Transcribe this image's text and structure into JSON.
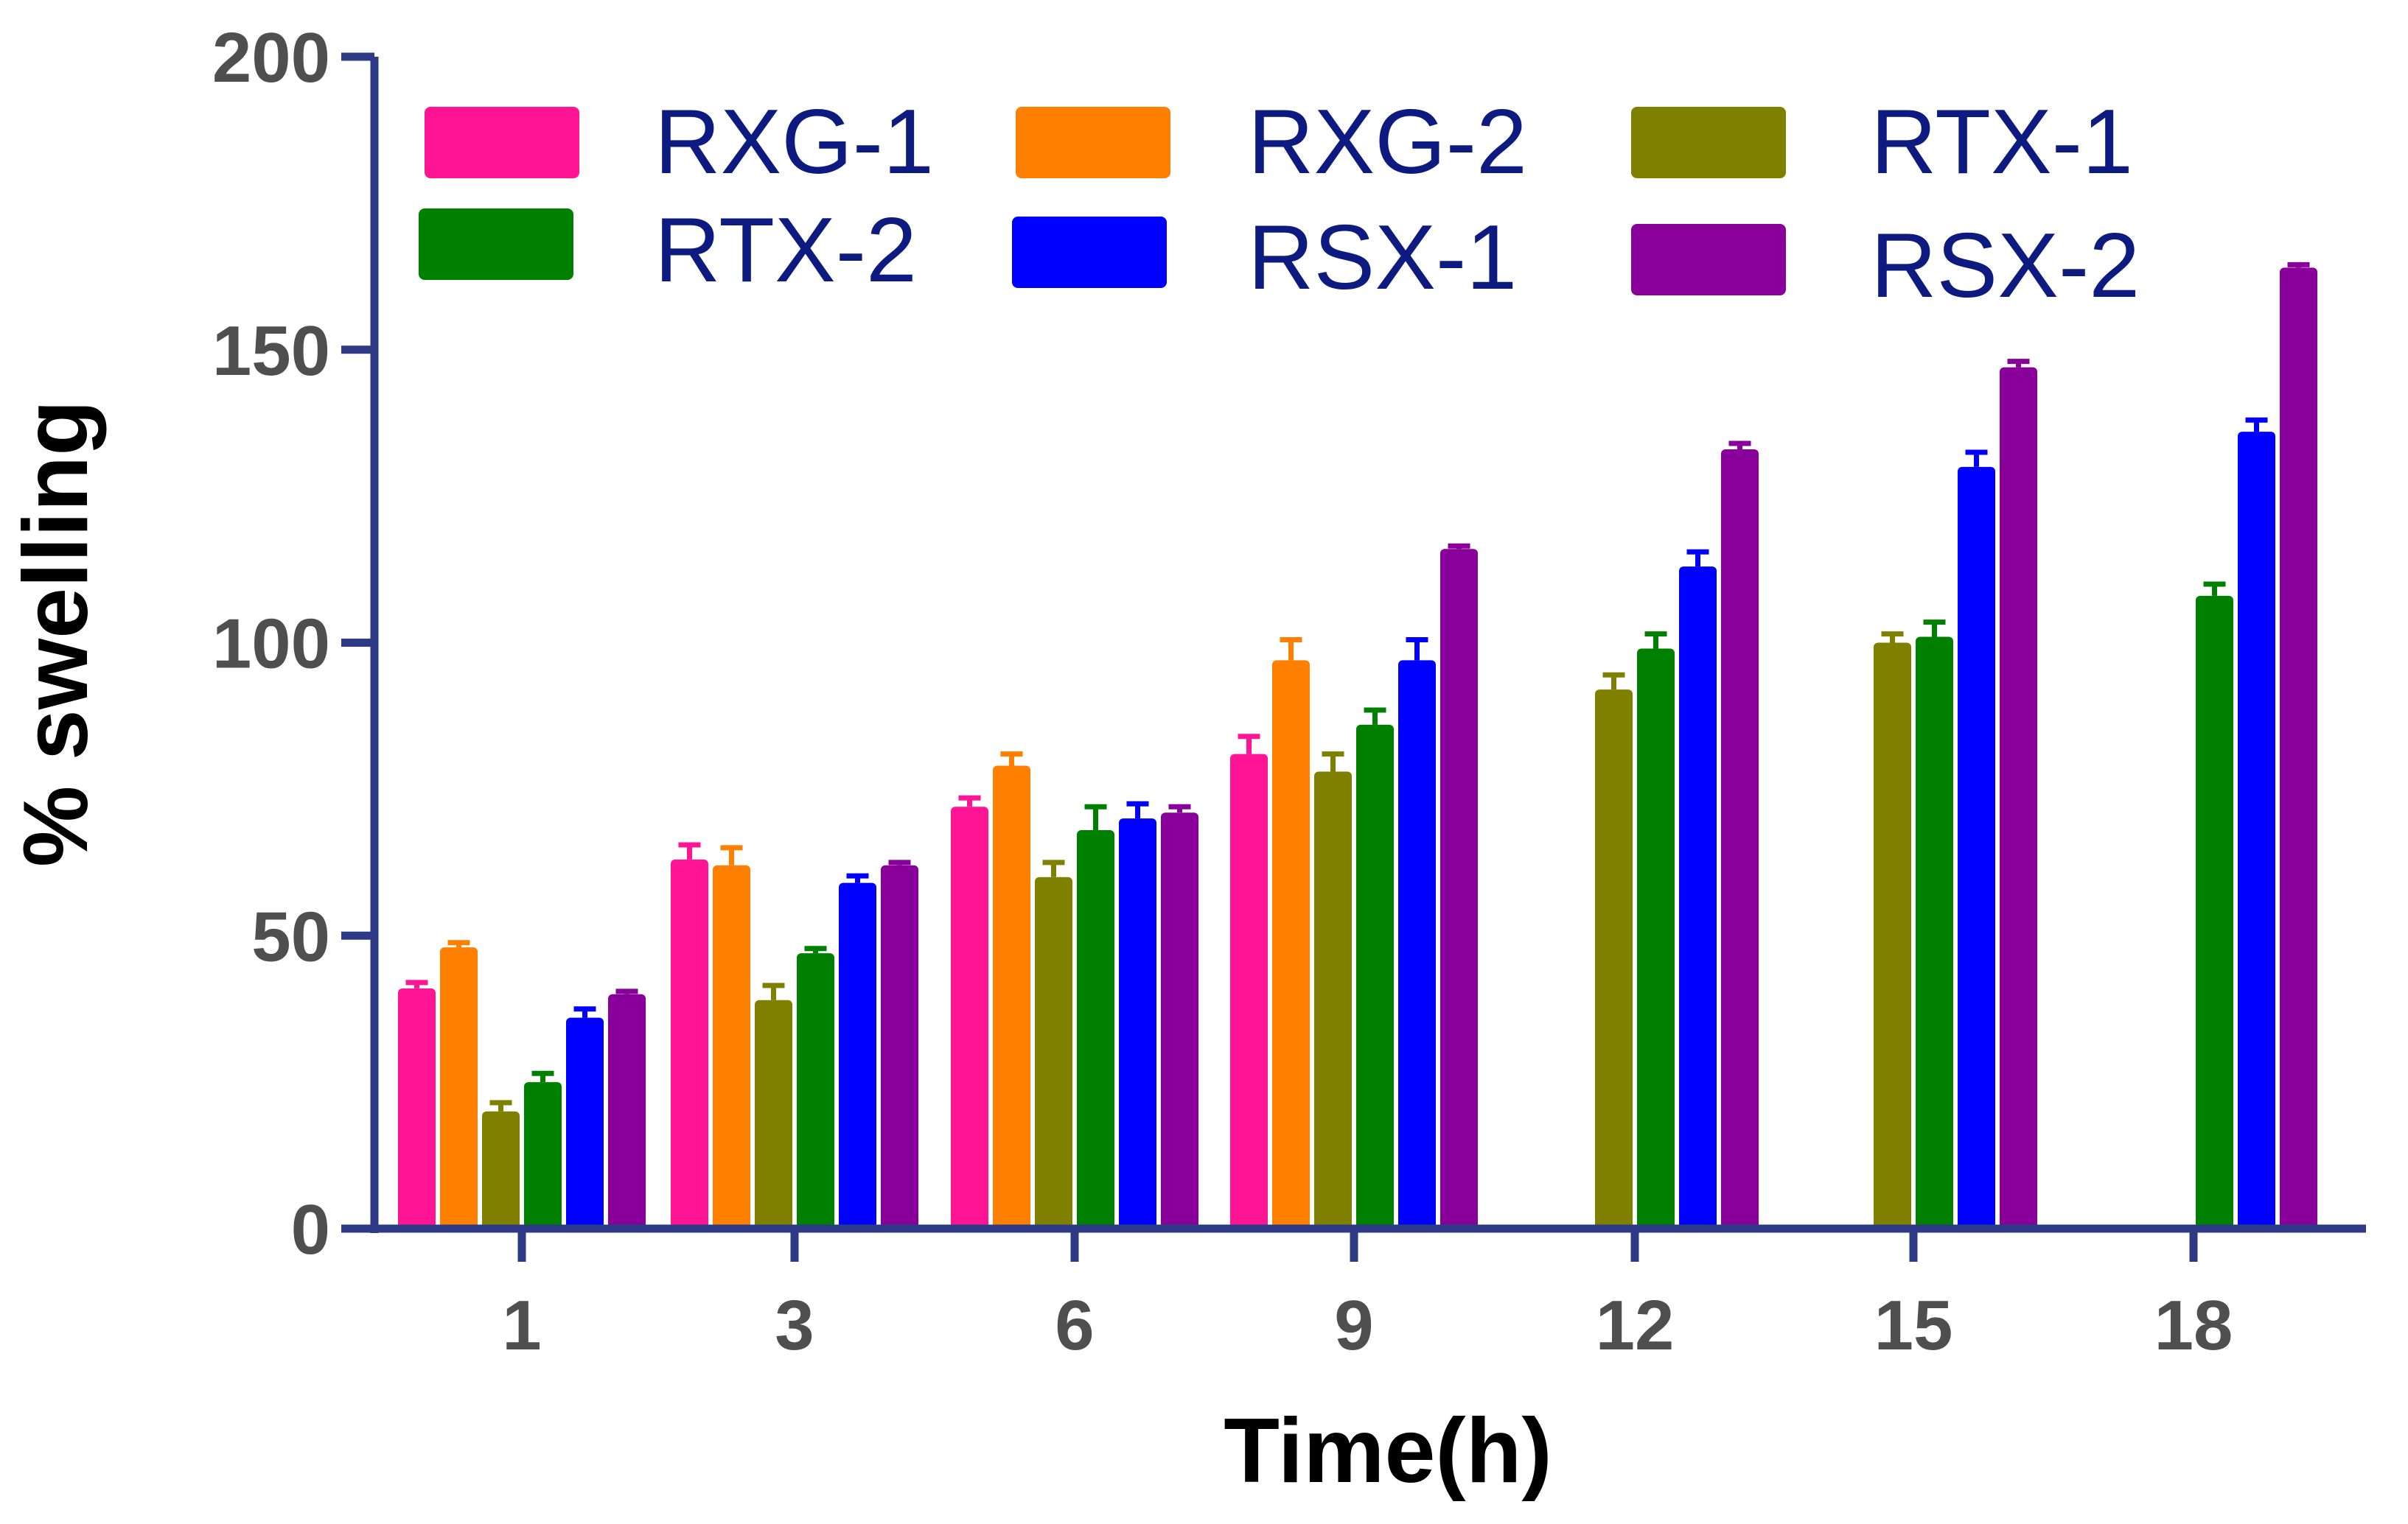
{
  "chart_data": {
    "type": "bar",
    "title": "",
    "xlabel": "Time(h)",
    "ylabel": "% swelling",
    "ylim": [
      0,
      200
    ],
    "yticks": [
      0,
      50,
      100,
      150,
      200
    ],
    "categories": [
      "1",
      "3",
      "6",
      "9",
      "12",
      "15",
      "18"
    ],
    "legend_position": "top",
    "series": [
      {
        "name": "RXG-1",
        "color": "#ff1493",
        "values": [
          41,
          63,
          72,
          81,
          null,
          null,
          null
        ],
        "errors": [
          1,
          2.5,
          1.5,
          3,
          null,
          null,
          null
        ]
      },
      {
        "name": "RXG-2",
        "color": "#ff8000",
        "values": [
          48,
          62,
          79,
          97,
          null,
          null,
          null
        ],
        "errors": [
          0.8,
          3,
          2,
          3.5,
          null,
          null,
          null
        ]
      },
      {
        "name": "RTX-1",
        "color": "#808000",
        "values": [
          20,
          39,
          60,
          78,
          92,
          100,
          null
        ],
        "errors": [
          1.5,
          2.5,
          2.5,
          3,
          2.5,
          1.5,
          null
        ]
      },
      {
        "name": "RTX-2",
        "color": "#008000",
        "values": [
          25,
          47,
          68,
          86,
          99,
          101,
          108
        ],
        "errors": [
          1.5,
          0.8,
          4,
          2.5,
          2.5,
          2.5,
          2
        ]
      },
      {
        "name": "RSX-1",
        "color": "#0000ff",
        "values": [
          36,
          59,
          70,
          97,
          113,
          130,
          136
        ],
        "errors": [
          1.5,
          1.2,
          2.5,
          3.5,
          2.5,
          2.5,
          2
        ]
      },
      {
        "name": "RSX-2",
        "color": "#880099",
        "values": [
          40,
          62,
          71,
          116,
          133,
          147,
          164
        ],
        "errors": [
          0.5,
          0.5,
          1,
          0.5,
          1,
          1,
          0.5
        ]
      }
    ]
  },
  "colors": {
    "axis": "#2e3a85",
    "tick_text": "#4f4f4f",
    "legend_text": "#0d1a80",
    "axis_title": "#000000"
  }
}
